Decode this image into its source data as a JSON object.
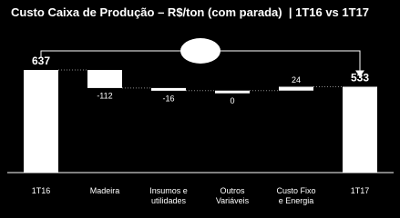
{
  "chart_data": {
    "type": "waterfall",
    "title": "Custo Caixa de Produção – R$/ton (com parada)  | 1T16 vs 1T17",
    "categories": [
      "1T16",
      "Madeira",
      "Insumos e\nutilidades",
      "Outros\nVariáveis",
      "Custo Fixo\ne Energia",
      "1T17"
    ],
    "values": [
      637,
      -112,
      -16,
      0,
      24,
      533
    ],
    "totals": [
      true,
      false,
      false,
      false,
      false,
      true
    ],
    "color": "#ffffff",
    "ylim": [
      0,
      750
    ]
  }
}
